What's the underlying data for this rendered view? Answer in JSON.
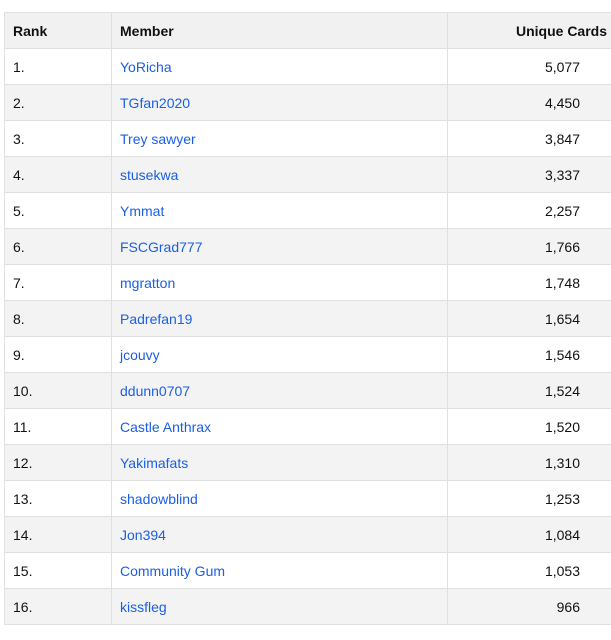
{
  "table": {
    "headers": {
      "rank": "Rank",
      "member": "Member",
      "unique_cards": "Unique Cards"
    },
    "rows": [
      {
        "rank": "1.",
        "member": "YoRicha",
        "cards": "5,077"
      },
      {
        "rank": "2.",
        "member": "TGfan2020",
        "cards": "4,450"
      },
      {
        "rank": "3.",
        "member": "Trey sawyer",
        "cards": "3,847"
      },
      {
        "rank": "4.",
        "member": "stusekwa",
        "cards": "3,337"
      },
      {
        "rank": "5.",
        "member": "Ymmat",
        "cards": "2,257"
      },
      {
        "rank": "6.",
        "member": "FSCGrad777",
        "cards": "1,766"
      },
      {
        "rank": "7.",
        "member": "mgratton",
        "cards": "1,748"
      },
      {
        "rank": "8.",
        "member": "Padrefan19",
        "cards": "1,654"
      },
      {
        "rank": "9.",
        "member": "jcouvy",
        "cards": "1,546"
      },
      {
        "rank": "10.",
        "member": "ddunn0707",
        "cards": "1,524"
      },
      {
        "rank": "11.",
        "member": "Castle Anthrax",
        "cards": "1,520"
      },
      {
        "rank": "12.",
        "member": "Yakimafats",
        "cards": "1,310"
      },
      {
        "rank": "13.",
        "member": "shadowblind",
        "cards": "1,253"
      },
      {
        "rank": "14.",
        "member": "Jon394",
        "cards": "1,084"
      },
      {
        "rank": "15.",
        "member": "Community Gum",
        "cards": "1,053"
      },
      {
        "rank": "16.",
        "member": "kissfleg",
        "cards": "966"
      }
    ]
  },
  "colors": {
    "link": "#1a5fe6",
    "header_bg": "#f1f1f1",
    "stripe_bg": "#f3f3f3",
    "border": "#e0e0e0"
  }
}
